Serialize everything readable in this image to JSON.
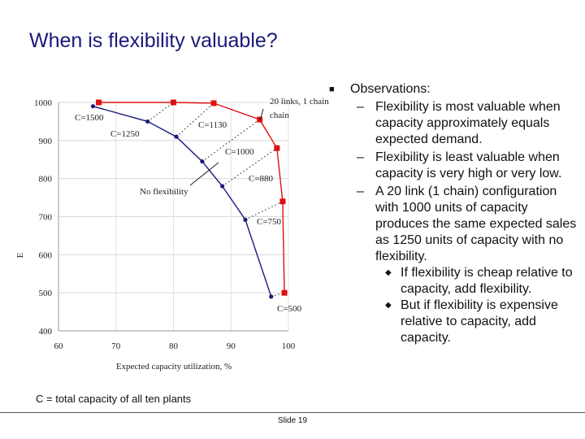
{
  "title": "When is flexibility valuable?",
  "caption": "C = total capacity of all ten plants",
  "slide_number": "Slide 19",
  "observations": {
    "heading": "Observations:",
    "bullet_icon": "square-bullet-icon",
    "items": [
      {
        "text": "Flexibility is most valuable when capacity approximately equals expected demand."
      },
      {
        "text": "Flexibility is least valuable when capacity is very high or very low."
      },
      {
        "text": "A 20 link (1 chain) configuration with 1000 units of capacity produces the same expected sales as 1250 units of capacity with no flexibility."
      }
    ],
    "subitems": [
      "If flexibility is cheap relative to capacity, add flexibility.",
      "But if flexibility is expensive relative to capacity, add capacity."
    ]
  },
  "chart_data": {
    "type": "line",
    "xlabel": "Expected capacity utilization, %",
    "ylabel": "E",
    "xlim": [
      60,
      100
    ],
    "ylim": [
      400,
      1000
    ],
    "x_ticks": [
      "60",
      "70",
      "80",
      "90",
      "100"
    ],
    "y_ticks": [
      "400",
      "500",
      "600",
      "700",
      "800",
      "900",
      "1000"
    ],
    "series": [
      {
        "name": "No flexibility",
        "color": "#1a1a7a",
        "marker": "circle",
        "points": [
          [
            66,
            990
          ],
          [
            75.5,
            950
          ],
          [
            80.5,
            910
          ],
          [
            85,
            845
          ],
          [
            88.5,
            780
          ],
          [
            92.5,
            692
          ],
          [
            97,
            490
          ]
        ]
      },
      {
        "name": "20 links, 1 chain",
        "color": "#dd1111",
        "marker": "square",
        "points": [
          [
            67,
            1000
          ],
          [
            80,
            1000
          ],
          [
            87,
            998
          ],
          [
            95,
            955
          ],
          [
            98,
            880
          ],
          [
            99,
            740
          ],
          [
            99.3,
            500
          ]
        ]
      }
    ],
    "capacity_labels": [
      "C=1500",
      "C=1250",
      "C=1130",
      "C=1000",
      "C=880",
      "C=750",
      "C=500"
    ],
    "annotations": [
      "20 links, 1 chain",
      "No flexibility"
    ]
  }
}
